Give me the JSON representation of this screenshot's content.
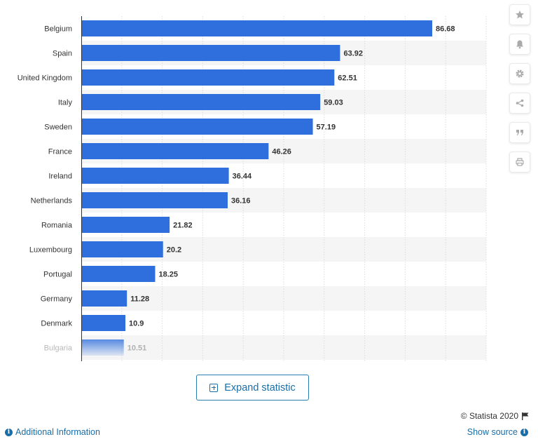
{
  "chart_data": {
    "type": "bar",
    "orientation": "horizontal",
    "categories": [
      "Belgium",
      "Spain",
      "United Kingdom",
      "Italy",
      "Sweden",
      "France",
      "Ireland",
      "Netherlands",
      "Romania",
      "Luxembourg",
      "Portugal",
      "Germany",
      "Denmark",
      "Bulgaria"
    ],
    "values": [
      86.68,
      63.92,
      62.51,
      59.03,
      57.19,
      46.26,
      36.44,
      36.16,
      21.82,
      20.2,
      18.25,
      11.28,
      10.9,
      10.51
    ],
    "value_labels": [
      "86.68",
      "63.92",
      "62.51",
      "59.03",
      "57.19",
      "46.26",
      "36.44",
      "36.16",
      "21.82",
      "20.2",
      "18.25",
      "11.28",
      "10.9",
      "10.51"
    ],
    "xlim": [
      0,
      100
    ],
    "grid": true,
    "bar_color": "#2f6fdd",
    "faded_last_row": true
  },
  "colors": {
    "accent": "#2f6fdd",
    "link": "#1a6ea7",
    "text": "#333333"
  },
  "toolbar": {
    "icons": [
      "star-icon",
      "bell-icon",
      "gear-icon",
      "share-icon",
      "quote-icon",
      "print-icon"
    ]
  },
  "expand": {
    "label": "Expand statistic"
  },
  "footer": {
    "copyright": "© Statista 2020",
    "additional_info": "Additional Information",
    "show_source": "Show source"
  }
}
